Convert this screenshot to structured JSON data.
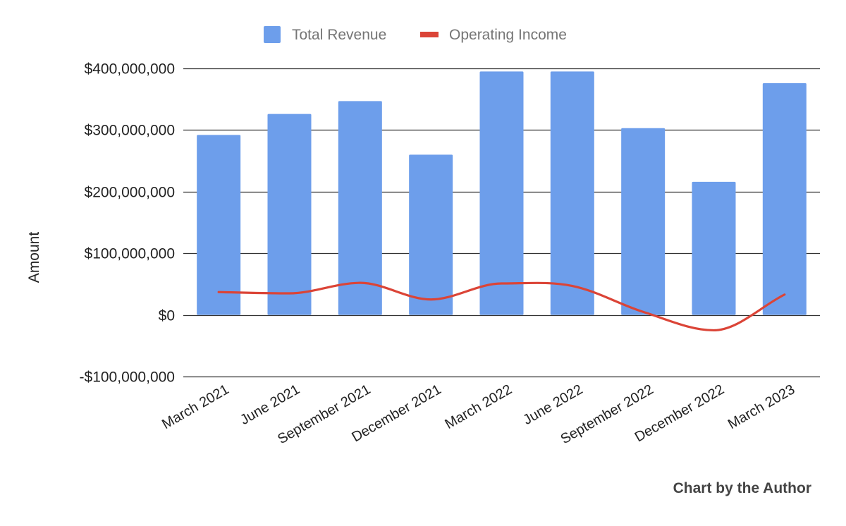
{
  "chart_data": {
    "type": "bar",
    "categories": [
      "March 2021",
      "June 2021",
      "September 2021",
      "December 2021",
      "March 2022",
      "June 2022",
      "September 2022",
      "December 2022",
      "March 2023"
    ],
    "series": [
      {
        "name": "Total Revenue",
        "kind": "bar",
        "color": "#6d9eeb",
        "values": [
          292000000,
          326000000,
          347000000,
          260000000,
          395000000,
          395000000,
          303000000,
          216000000,
          376000000
        ]
      },
      {
        "name": "Operating Income",
        "kind": "line",
        "smooth": true,
        "color": "#db4437",
        "values": [
          37000000,
          35000000,
          52000000,
          25000000,
          51000000,
          47000000,
          5000000,
          -25000000,
          33000000
        ]
      }
    ],
    "ylabel": "Amount",
    "xlabel": "",
    "ylim": [
      -100000000,
      400000000
    ],
    "yticks": [
      {
        "value": 400000000,
        "label": "$400,000,000"
      },
      {
        "value": 300000000,
        "label": "$300,000,000"
      },
      {
        "value": 200000000,
        "label": "$200,000,000"
      },
      {
        "value": 100000000,
        "label": "$100,000,000"
      },
      {
        "value": 0,
        "label": "$0"
      },
      {
        "value": -100000000,
        "label": "-$100,000,000"
      }
    ],
    "legend_position": "top",
    "grid": true,
    "grid_color": "#333333",
    "credit": "Chart by the Author"
  }
}
